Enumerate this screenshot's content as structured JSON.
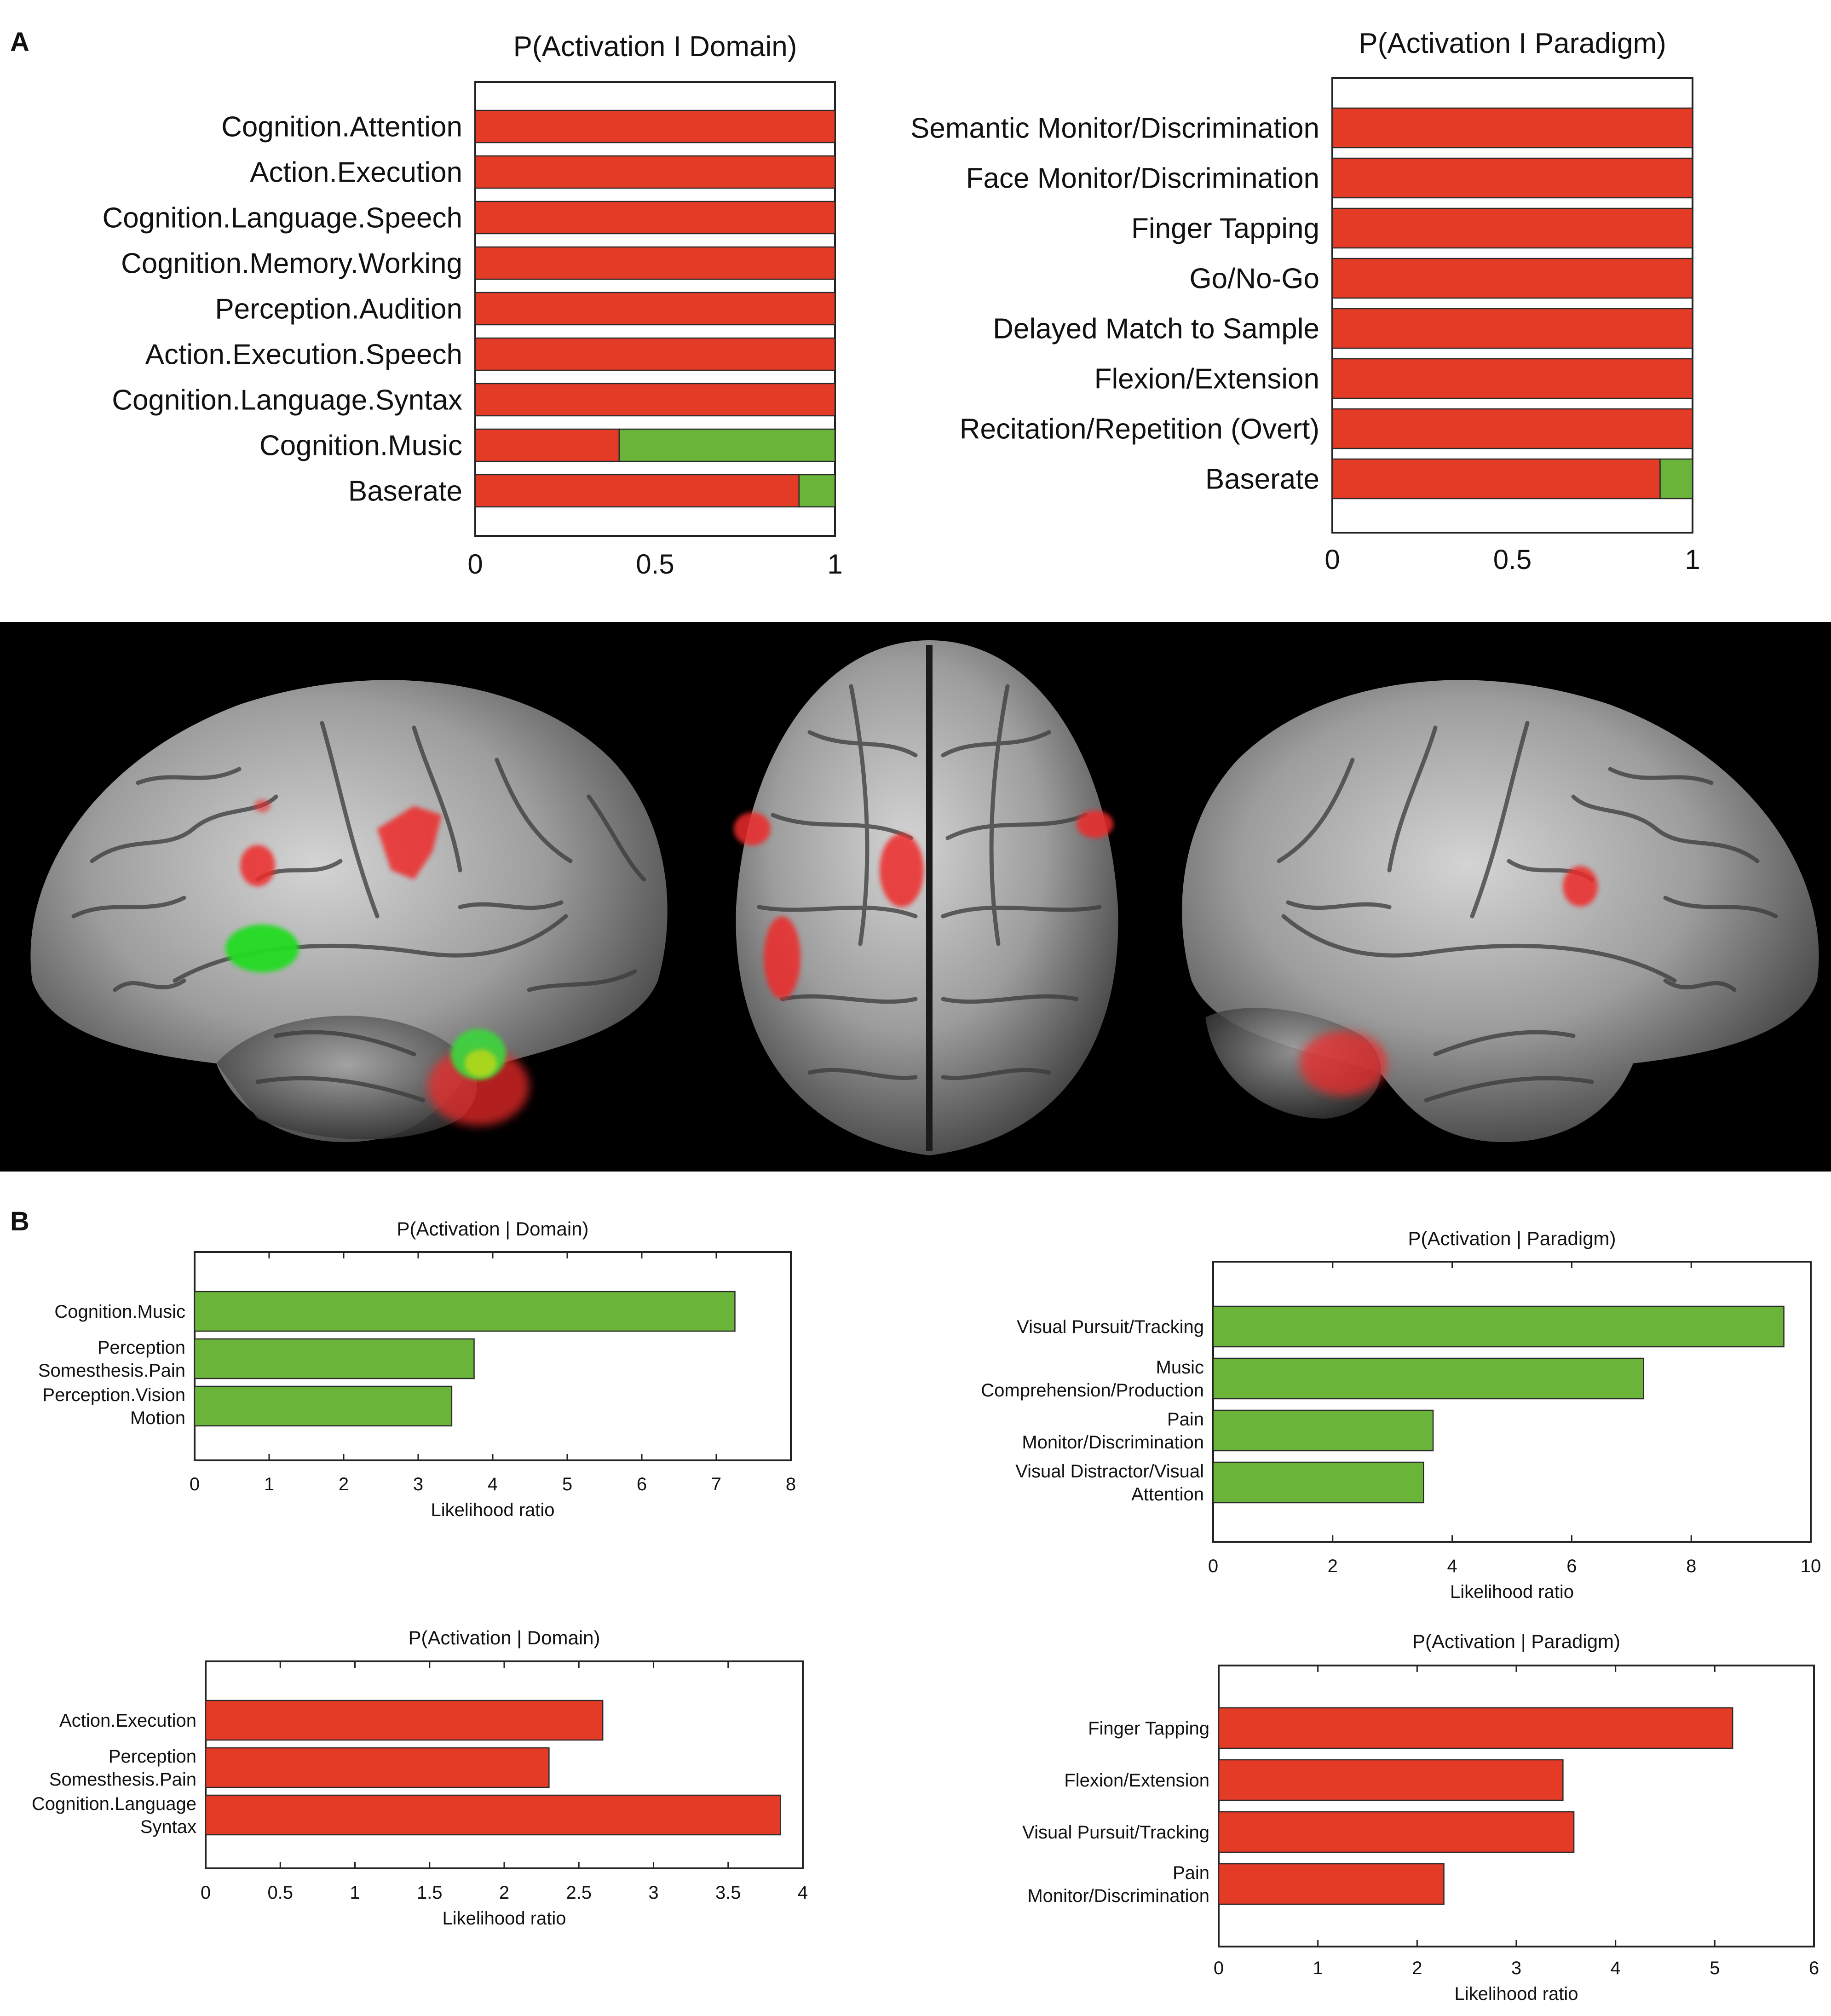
{
  "panel_labels": {
    "a": "A",
    "b": "B"
  },
  "colors": {
    "red": "#e43b26",
    "green": "#6ab43a",
    "bar_stroke": "#2a2a2a",
    "brain_bg": "#000000"
  },
  "brain_view_icons": [
    "left-lateral-brain",
    "dorsal-brain",
    "right-lateral-brain"
  ],
  "chart_data": [
    {
      "id": "a-domain",
      "type": "bar",
      "orientation": "horizontal",
      "stacked": true,
      "title": "P(Activation I Domain)",
      "xlabel": "",
      "categories": [
        "Cognition.Attention",
        "Action.Execution",
        "Cognition.Language.Speech",
        "Cognition.Memory.Working",
        "Perception.Audition",
        "Action.Execution.Speech",
        "Cognition.Language.Syntax",
        "Cognition.Music",
        "Baserate"
      ],
      "series": [
        {
          "color": "#e43b26",
          "values": [
            1,
            1,
            1,
            1,
            1,
            1,
            1,
            0.4,
            0.9
          ]
        },
        {
          "color": "#6ab43a",
          "values": [
            0,
            0,
            0,
            0,
            0,
            0,
            0,
            0.6,
            0.1
          ]
        }
      ],
      "xlim": [
        0,
        1
      ],
      "ticks": [
        0,
        0.5,
        1
      ],
      "tick_labels": [
        "0",
        "0.5",
        "1"
      ],
      "grid": false
    },
    {
      "id": "a-paradigm",
      "type": "bar",
      "orientation": "horizontal",
      "stacked": true,
      "title": "P(Activation I Paradigm)",
      "xlabel": "",
      "categories": [
        "Semantic Monitor/Discrimination",
        "Face Monitor/Discrimination",
        "Finger Tapping",
        "Go/No-Go",
        "Delayed Match to Sample",
        "Flexion/Extension",
        "Recitation/Repetition (Overt)",
        "Baserate"
      ],
      "series": [
        {
          "color": "#e43b26",
          "values": [
            1,
            1,
            1,
            1,
            1,
            1,
            1,
            0.91
          ]
        },
        {
          "color": "#6ab43a",
          "values": [
            0,
            0,
            0,
            0,
            0,
            0,
            0,
            0.09
          ]
        }
      ],
      "xlim": [
        0,
        1
      ],
      "ticks": [
        0,
        0.5,
        1
      ],
      "tick_labels": [
        "0",
        "0.5",
        "1"
      ],
      "grid": false
    },
    {
      "id": "b-domain-green",
      "type": "bar",
      "orientation": "horizontal",
      "title": "P(Activation | Domain)",
      "xlabel": "Likelihood ratio",
      "categories": [
        [
          "Cognition.Music"
        ],
        [
          "Perception",
          "Somesthesis.Pain"
        ],
        [
          "Perception.Vision",
          "Motion"
        ]
      ],
      "series": [
        {
          "color": "#6ab43a",
          "values": [
            7.25,
            3.75,
            3.45
          ]
        }
      ],
      "xlim": [
        0,
        8
      ],
      "ticks": [
        0,
        1,
        2,
        3,
        4,
        5,
        6,
        7,
        8
      ],
      "tick_labels": [
        "0",
        "1",
        "2",
        "3",
        "4",
        "5",
        "6",
        "7",
        "8"
      ],
      "grid": false
    },
    {
      "id": "b-paradigm-green",
      "type": "bar",
      "orientation": "horizontal",
      "title": "P(Activation | Paradigm)",
      "xlabel": "Likelihood ratio",
      "categories": [
        [
          "Visual Pursuit/Tracking"
        ],
        [
          "Music",
          "Comprehension/Production"
        ],
        [
          "Pain",
          "Monitor/Discrimination"
        ],
        [
          "Visual Distractor/Visual",
          "Attention"
        ]
      ],
      "series": [
        {
          "color": "#6ab43a",
          "values": [
            9.55,
            7.2,
            3.68,
            3.52
          ]
        }
      ],
      "xlim": [
        0,
        10
      ],
      "ticks": [
        0,
        2,
        4,
        6,
        8,
        10
      ],
      "tick_labels": [
        "0",
        "2",
        "4",
        "6",
        "8",
        "10"
      ],
      "grid": false
    },
    {
      "id": "b-domain-red",
      "type": "bar",
      "orientation": "horizontal",
      "title": "P(Activation | Domain)",
      "xlabel": "Likelihood ratio",
      "categories": [
        [
          "Action.Execution"
        ],
        [
          "Perception",
          "Somesthesis.Pain"
        ],
        [
          "Cognition.Language",
          "Syntax"
        ]
      ],
      "series": [
        {
          "color": "#e43b26",
          "values": [
            2.66,
            2.3,
            3.85
          ]
        }
      ],
      "xlim": [
        0,
        4
      ],
      "ticks": [
        0,
        0.5,
        1,
        1.5,
        2,
        2.5,
        3,
        3.5,
        4
      ],
      "tick_labels": [
        "0",
        "0.5",
        "1",
        "1.5",
        "2",
        "2.5",
        "3",
        "3.5",
        "4"
      ],
      "grid": false
    },
    {
      "id": "b-paradigm-red",
      "type": "bar",
      "orientation": "horizontal",
      "title": "P(Activation | Paradigm)",
      "xlabel": "Likelihood ratio",
      "categories": [
        [
          "Finger Tapping"
        ],
        [
          "Flexion/Extension"
        ],
        [
          "Visual Pursuit/Tracking"
        ],
        [
          "Pain",
          "Monitor/Discrimination"
        ]
      ],
      "series": [
        {
          "color": "#e43b26",
          "values": [
            5.18,
            3.47,
            3.58,
            2.27
          ]
        }
      ],
      "xlim": [
        0,
        6
      ],
      "ticks": [
        0,
        1,
        2,
        3,
        4,
        5,
        6
      ],
      "tick_labels": [
        "0",
        "1",
        "2",
        "3",
        "4",
        "5",
        "6"
      ],
      "grid": false
    }
  ]
}
